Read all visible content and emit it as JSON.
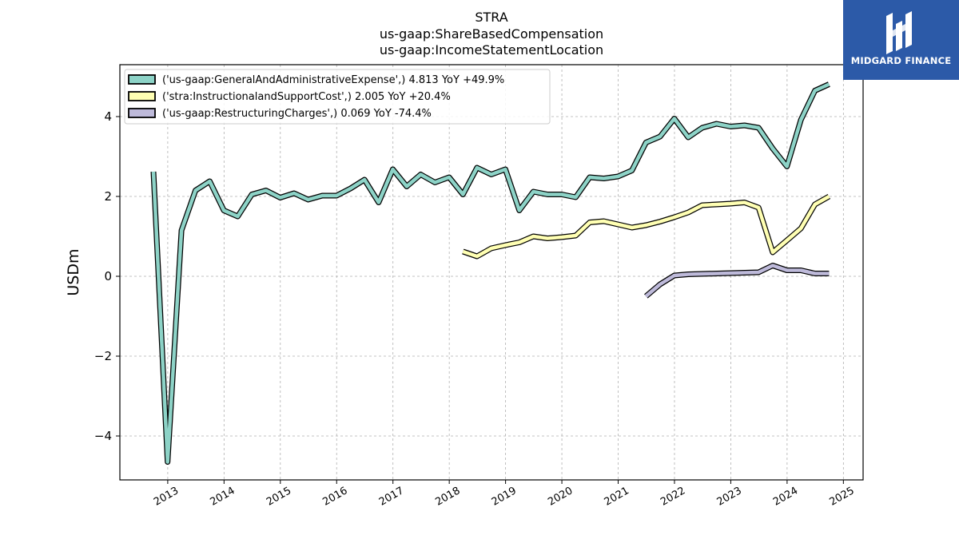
{
  "chart_data": {
    "type": "line",
    "title": [
      "STRA",
      "us-gaap:ShareBasedCompensation",
      "us-gaap:IncomeStatementLocation"
    ],
    "xlabel": "",
    "ylabel": "USDm",
    "ylim": [
      -5.1,
      5.3
    ],
    "xlim": [
      2012.15,
      2025.35
    ],
    "yticks": [
      -4,
      -2,
      0,
      2,
      4
    ],
    "ytick_labels": [
      "−4",
      "−2",
      "0",
      "2",
      "4"
    ],
    "xticks": [
      2013,
      2014,
      2015,
      2016,
      2017,
      2018,
      2019,
      2020,
      2021,
      2022,
      2023,
      2024,
      2025
    ],
    "xtick_labels": [
      "2013",
      "2014",
      "2015",
      "2016",
      "2017",
      "2018",
      "2019",
      "2020",
      "2021",
      "2022",
      "2023",
      "2024",
      "2025"
    ],
    "grid": true,
    "legend_position": "top-left",
    "series": [
      {
        "name": "('us-gaap:GeneralAndAdministrativeExpense',) 4.813 YoY +49.9%",
        "color": "#8dd3c7",
        "x": [
          "2012-09-30",
          "2012-12-31",
          "2013-03-31",
          "2013-06-30",
          "2013-09-30",
          "2013-12-31",
          "2014-03-31",
          "2014-06-30",
          "2014-09-30",
          "2014-12-31",
          "2015-03-31",
          "2015-06-30",
          "2015-09-30",
          "2015-12-31",
          "2016-03-31",
          "2016-06-30",
          "2016-09-30",
          "2016-12-31",
          "2017-03-31",
          "2017-06-30",
          "2017-09-30",
          "2017-12-31",
          "2018-03-31",
          "2018-06-30",
          "2018-09-30",
          "2018-12-31",
          "2019-03-31",
          "2019-06-30",
          "2019-09-30",
          "2019-12-31",
          "2020-03-31",
          "2020-06-30",
          "2020-09-30",
          "2020-12-31",
          "2021-03-31",
          "2021-06-30",
          "2021-09-30",
          "2021-12-31",
          "2022-03-31",
          "2022-06-30",
          "2022-09-30",
          "2022-12-31",
          "2023-03-31",
          "2023-06-30",
          "2023-09-30",
          "2023-12-31",
          "2024-03-31",
          "2024-06-30",
          "2024-09-30"
        ],
        "values": [
          2.62,
          -4.65,
          1.15,
          2.15,
          2.38,
          1.65,
          1.5,
          2.05,
          2.15,
          1.97,
          2.08,
          1.92,
          2.02,
          2.02,
          2.2,
          2.42,
          1.85,
          2.68,
          2.25,
          2.55,
          2.35,
          2.48,
          2.05,
          2.72,
          2.55,
          2.68,
          1.65,
          2.12,
          2.05,
          2.05,
          1.98,
          2.48,
          2.45,
          2.5,
          2.65,
          3.35,
          3.5,
          3.95,
          3.48,
          3.72,
          3.82,
          3.75,
          3.78,
          3.72,
          3.2,
          2.75,
          3.92,
          4.65,
          4.81
        ]
      },
      {
        "name": "('stra:InstructionalandSupportCost',) 2.005 YoY +20.4%",
        "color": "#ffffb3",
        "x": [
          "2018-03-31",
          "2018-06-30",
          "2018-09-30",
          "2018-12-31",
          "2019-03-31",
          "2019-06-30",
          "2019-09-30",
          "2019-12-31",
          "2020-03-31",
          "2020-06-30",
          "2020-09-30",
          "2020-12-31",
          "2021-03-31",
          "2021-06-30",
          "2021-09-30",
          "2021-12-31",
          "2022-03-31",
          "2022-06-30",
          "2022-09-30",
          "2022-12-31",
          "2023-03-31",
          "2023-06-30",
          "2023-09-30",
          "2023-12-31",
          "2024-03-31",
          "2024-06-30",
          "2024-09-30"
        ],
        "values": [
          0.62,
          0.5,
          0.7,
          0.78,
          0.85,
          1.0,
          0.95,
          0.98,
          1.02,
          1.35,
          1.38,
          1.3,
          1.22,
          1.28,
          1.37,
          1.48,
          1.6,
          1.78,
          1.8,
          1.82,
          1.85,
          1.72,
          0.6,
          0.9,
          1.2,
          1.8,
          2.0
        ]
      },
      {
        "name": "('us-gaap:RestructuringCharges',) 0.069 YoY -74.4%",
        "color": "#bebada",
        "x": [
          "2021-06-30",
          "2021-09-30",
          "2021-12-31",
          "2022-03-31",
          "2023-06-30",
          "2023-09-30",
          "2023-12-31",
          "2024-03-31",
          "2024-06-30",
          "2024-09-30"
        ],
        "values": [
          -0.5,
          -0.2,
          0.02,
          0.05,
          0.1,
          0.27,
          0.15,
          0.15,
          0.07,
          0.07
        ]
      }
    ]
  },
  "logo": {
    "text": "MIDGARD FINANCE",
    "bg_color": "#2c5aa8"
  }
}
